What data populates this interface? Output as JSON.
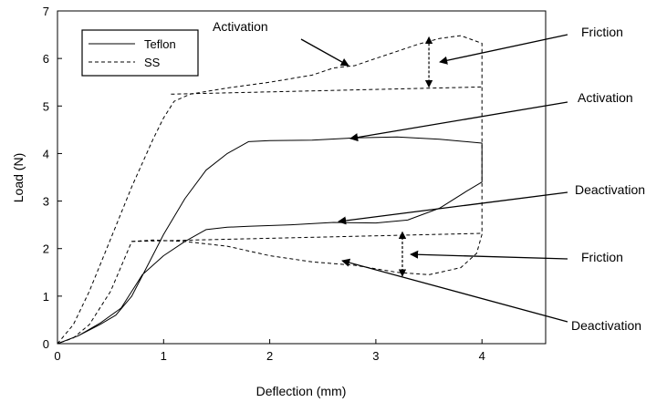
{
  "chart_data": {
    "type": "line",
    "title": "",
    "xlabel": "Deflection (mm)",
    "ylabel": "Load (N)",
    "xlim": [
      0,
      4.6
    ],
    "ylim": [
      0,
      7
    ],
    "x_ticks": [
      "0",
      "1",
      "2",
      "3",
      "4"
    ],
    "y_ticks": [
      "0",
      "1",
      "2",
      "3",
      "4",
      "5",
      "6",
      "7"
    ],
    "legend": {
      "placement": "top-left",
      "entries": [
        "Teflon",
        "SS"
      ]
    },
    "series": [
      {
        "name": "Teflon",
        "style": "solid",
        "color": "#000000",
        "points": [
          [
            0,
            0
          ],
          [
            0.2,
            0.17
          ],
          [
            0.4,
            0.4
          ],
          [
            0.55,
            0.6
          ],
          [
            0.7,
            1.0
          ],
          [
            0.85,
            1.65
          ],
          [
            1.0,
            2.3
          ],
          [
            1.2,
            3.05
          ],
          [
            1.4,
            3.65
          ],
          [
            1.6,
            4.0
          ],
          [
            1.8,
            4.25
          ],
          [
            2.0,
            4.27
          ],
          [
            2.4,
            4.28
          ],
          [
            2.8,
            4.33
          ],
          [
            3.2,
            4.35
          ],
          [
            3.6,
            4.3
          ],
          [
            4.0,
            4.22
          ],
          [
            4.0,
            3.4
          ],
          [
            3.85,
            3.2
          ],
          [
            3.6,
            2.85
          ],
          [
            3.3,
            2.6
          ],
          [
            3.0,
            2.54
          ],
          [
            2.6,
            2.55
          ],
          [
            2.2,
            2.5
          ],
          [
            1.8,
            2.47
          ],
          [
            1.6,
            2.45
          ],
          [
            1.4,
            2.4
          ],
          [
            1.2,
            2.15
          ],
          [
            1.0,
            1.85
          ],
          [
            0.8,
            1.45
          ],
          [
            0.6,
            0.75
          ],
          [
            0.4,
            0.43
          ],
          [
            0.2,
            0.17
          ],
          [
            0,
            0
          ]
        ]
      },
      {
        "name": "SS",
        "style": "dashed",
        "color": "#000000",
        "points": [
          [
            0,
            0
          ],
          [
            0.15,
            0.4
          ],
          [
            0.3,
            1.1
          ],
          [
            0.5,
            2.2
          ],
          [
            0.7,
            3.3
          ],
          [
            0.9,
            4.3
          ],
          [
            1.0,
            4.75
          ],
          [
            1.1,
            5.1
          ],
          [
            1.25,
            5.25
          ],
          [
            1.6,
            5.38
          ],
          [
            2.0,
            5.5
          ],
          [
            2.4,
            5.65
          ],
          [
            2.6,
            5.8
          ],
          [
            2.8,
            5.85
          ],
          [
            3.0,
            6.0
          ],
          [
            3.2,
            6.15
          ],
          [
            3.4,
            6.3
          ],
          [
            3.6,
            6.42
          ],
          [
            3.8,
            6.48
          ],
          [
            4.0,
            6.32
          ],
          [
            4.0,
            2.3
          ],
          [
            3.95,
            1.9
          ],
          [
            3.8,
            1.6
          ],
          [
            3.5,
            1.45
          ],
          [
            3.2,
            1.5
          ],
          [
            2.8,
            1.65
          ],
          [
            2.4,
            1.72
          ],
          [
            2.0,
            1.85
          ],
          [
            1.6,
            2.05
          ],
          [
            1.2,
            2.15
          ],
          [
            0.9,
            2.18
          ],
          [
            0.7,
            2.15
          ],
          [
            0.5,
            1.1
          ],
          [
            0.3,
            0.4
          ],
          [
            0.15,
            0.12
          ],
          [
            0,
            0
          ]
        ]
      },
      {
        "name": "",
        "style": "dashed",
        "color": "#000000",
        "points": [
          [
            1.07,
            5.25
          ],
          [
            4.0,
            5.4
          ]
        ]
      },
      {
        "name": "",
        "style": "dashed",
        "color": "#000000",
        "points": [
          [
            0.7,
            2.15
          ],
          [
            4.0,
            2.32
          ]
        ]
      }
    ],
    "friction_markers": [
      {
        "x": 3.5,
        "y_top": 6.45,
        "y_bottom": 5.4
      },
      {
        "x": 3.25,
        "y_top": 2.35,
        "y_bottom": 1.42
      }
    ],
    "annotations": [
      {
        "text": "Activation",
        "target": [
          2.7,
          5.85
        ]
      },
      {
        "text": "Friction",
        "target": [
          3.55,
          5.95
        ]
      },
      {
        "text": "Activation",
        "target": [
          2.7,
          4.3
        ]
      },
      {
        "text": "Deactivation",
        "target": [
          2.6,
          2.55
        ]
      },
      {
        "text": "Friction",
        "target": [
          3.3,
          1.9
        ]
      },
      {
        "text": "Deactivation",
        "target": [
          2.6,
          1.75
        ]
      }
    ]
  }
}
